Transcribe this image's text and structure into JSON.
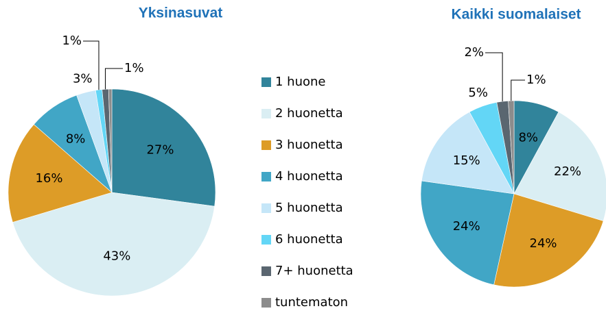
{
  "chart_data": [
    {
      "type": "pie",
      "title": "Yksinasuvat",
      "categories": [
        "1 huone",
        "2 huonetta",
        "3 huonetta",
        "4 huonetta",
        "5 huonetta",
        "6 huonetta",
        "7+ huonetta",
        "tuntematon"
      ],
      "values": [
        27,
        43,
        16,
        8,
        3,
        1,
        1,
        0.5
      ],
      "value_labels": [
        "27%",
        "43%",
        "16%",
        "8%",
        "3%",
        "1%",
        "1%",
        null
      ],
      "colors": [
        "#31849b",
        "#daeef3",
        "#dd9c27",
        "#41a6c6",
        "#c5e6f8",
        "#63d6f6",
        "#5a6670",
        "#8c8c8c"
      ]
    },
    {
      "type": "pie",
      "title": "Kaikki suomalaiset",
      "categories": [
        "1 huone",
        "2 huonetta",
        "3 huonetta",
        "4 huonetta",
        "5 huonetta",
        "6 huonetta",
        "7+ huonetta",
        "tuntematon"
      ],
      "values": [
        8,
        22,
        24,
        24,
        15,
        5,
        2,
        1
      ],
      "value_labels": [
        "8%",
        "22%",
        "24%",
        "24%",
        "15%",
        "5%",
        "2%",
        "1%"
      ],
      "colors": [
        "#31849b",
        "#daeef3",
        "#dd9c27",
        "#41a6c6",
        "#c5e6f8",
        "#63d6f6",
        "#5a6670",
        "#8c8c8c"
      ]
    }
  ]
}
